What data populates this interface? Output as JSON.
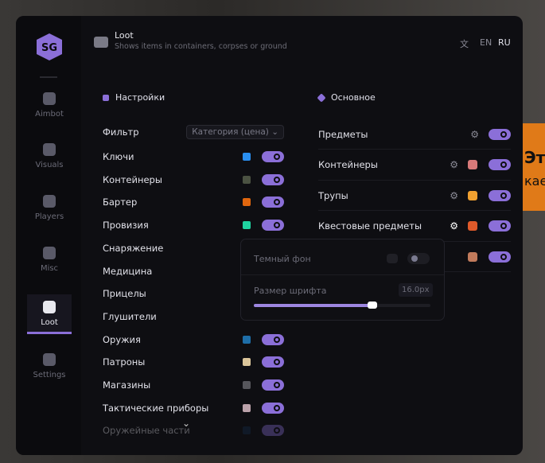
{
  "background": {
    "text1": "Эт",
    "text2": "кае"
  },
  "header": {
    "title": "Loot",
    "subtitle": "Shows items in containers, corpses or ground",
    "lang": [
      "EN",
      "RU"
    ]
  },
  "sidebar": [
    {
      "label": "Aimbot",
      "icon": "alien-icon"
    },
    {
      "label": "Visuals",
      "icon": "gamepad-icon"
    },
    {
      "label": "Players",
      "icon": "users-icon"
    },
    {
      "label": "Misc",
      "icon": "dots-icon"
    },
    {
      "label": "Loot",
      "icon": "briefcase-icon",
      "active": true
    },
    {
      "label": "Settings",
      "icon": "list-icon"
    }
  ],
  "settings": {
    "title": "Настройки",
    "filter_label": "Фильтр",
    "filter_value": "Категория (цена)",
    "items": [
      {
        "label": "Ключи",
        "color": "#2a8ff0",
        "on": true
      },
      {
        "label": "Контейнеры",
        "color": "#4b5242",
        "on": true
      },
      {
        "label": "Бартер",
        "color": "#e0660e",
        "on": true
      },
      {
        "label": "Провизия",
        "color": "#1fd3a0",
        "on": true
      },
      {
        "label": "Снаряжение"
      },
      {
        "label": "Медицина"
      },
      {
        "label": "Прицелы"
      },
      {
        "label": "Глушители"
      },
      {
        "label": "Оружия",
        "color": "#1e6ea8",
        "on": true
      },
      {
        "label": "Патроны",
        "color": "#dac59a",
        "on": true
      },
      {
        "label": "Магазины",
        "color": "#56565c",
        "on": true
      },
      {
        "label": "Тактические приборы",
        "color": "#bba2aa",
        "on": true
      },
      {
        "label": "Оружейные части",
        "color": "#15304e",
        "on": true,
        "dim": true
      }
    ]
  },
  "main": {
    "title": "Основное",
    "items": [
      {
        "label": "Предметы",
        "gear": true,
        "on": true
      },
      {
        "label": "Контейнеры",
        "gear": true,
        "color": "#d87a7a",
        "on": true
      },
      {
        "label": "Трупы",
        "gear": true,
        "color": "#f0a030",
        "on": true
      },
      {
        "label": "Квестовые предметы",
        "gear": true,
        "color": "#e05a2a",
        "on": true
      },
      {
        "label": "",
        "color": "#c27b5c",
        "on": true
      }
    ]
  },
  "popup": {
    "dark_bg_label": "Темный фон",
    "dark_bg_on": false,
    "font_size_label": "Размер шрифта",
    "font_size_value": "16.0px",
    "font_size_fraction": 0.67
  },
  "accent": "#8b6fd8"
}
